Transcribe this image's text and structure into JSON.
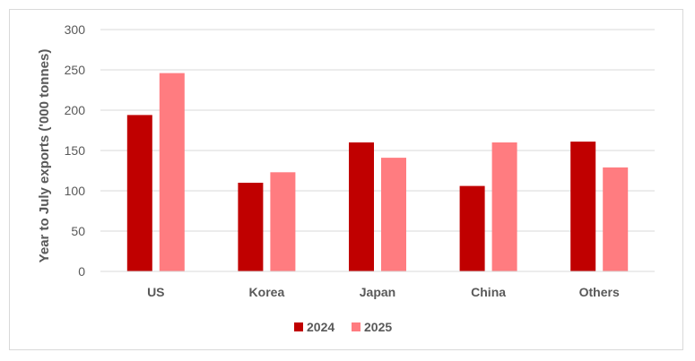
{
  "chart_data": {
    "type": "bar",
    "categories": [
      "US",
      "Korea",
      "Japan",
      "China",
      "Others"
    ],
    "series": [
      {
        "name": "2024",
        "color": "#c00000",
        "values": [
          194,
          110,
          160,
          106,
          161
        ]
      },
      {
        "name": "2025",
        "color": "#ff7c80",
        "values": [
          246,
          123,
          141,
          160,
          129
        ]
      }
    ],
    "ylabel": "Year to July exports ('000 tonnes)",
    "xlabel": "",
    "ylim": [
      0,
      300
    ],
    "yticks": [
      0,
      50,
      100,
      150,
      200,
      250,
      300
    ],
    "grid": true,
    "legend_position": "bottom"
  }
}
